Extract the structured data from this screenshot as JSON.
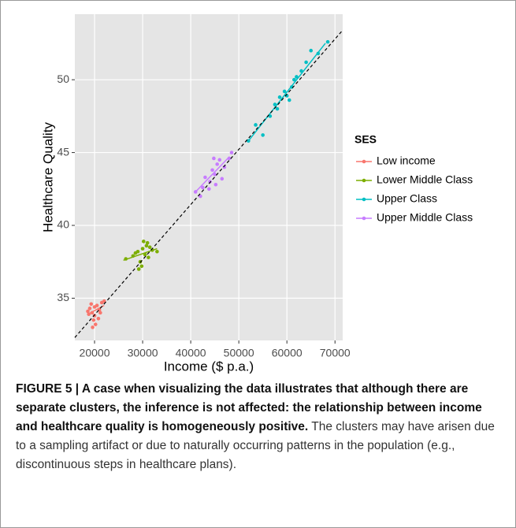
{
  "chart_data": {
    "type": "scatter",
    "xlabel": "Income ($ p.a.)",
    "ylabel": "Healthcare Quality",
    "legend_title": "SES",
    "legend": "right",
    "grid": true,
    "xlim": [
      15900,
      71600
    ],
    "ylim": [
      32.1,
      54.5
    ],
    "xticks": [
      20000,
      30000,
      40000,
      50000,
      60000,
      70000
    ],
    "yticks": [
      35,
      40,
      45,
      50
    ],
    "reference_line": {
      "x": [
        15900,
        71600
      ],
      "y": [
        32.3,
        53.4
      ]
    },
    "series": [
      {
        "name": "Low income",
        "color": "#F8766D",
        "x": [
          19000,
          19500,
          20000,
          20500,
          21000,
          19800,
          20200,
          21500,
          22000,
          18800,
          19300,
          20800,
          19600,
          21200,
          20000,
          18600
        ],
        "values": [
          34.3,
          34.0,
          33.8,
          34.5,
          34.2,
          33.5,
          33.2,
          34.7,
          34.8,
          33.9,
          34.6,
          33.6,
          33.0,
          34.0,
          34.4,
          34.1
        ],
        "fit": {
          "x": [
            18600,
            22000
          ],
          "y": [
            33.9,
            34.5
          ]
        }
      },
      {
        "name": "Lower Middle Class",
        "color": "#7CAE00",
        "x": [
          26500,
          28000,
          29000,
          29500,
          30000,
          30500,
          31000,
          31500,
          29800,
          30200,
          32000,
          28500,
          29200,
          31200,
          33000,
          30800
        ],
        "values": [
          37.7,
          37.9,
          38.2,
          37.5,
          38.4,
          38.0,
          38.8,
          38.5,
          37.2,
          38.9,
          38.3,
          38.1,
          37.0,
          37.8,
          38.2,
          38.6
        ],
        "fit": {
          "x": [
            26000,
            33000
          ],
          "y": [
            37.6,
            38.4
          ]
        }
      },
      {
        "name": "Upper Class",
        "color": "#00BFC4",
        "x": [
          52000,
          53500,
          55000,
          56500,
          57500,
          58000,
          58500,
          59500,
          60000,
          61000,
          61500,
          62000,
          63000,
          64000,
          65000,
          66500,
          68500,
          60500
        ],
        "values": [
          45.8,
          46.9,
          46.2,
          47.5,
          48.3,
          48.0,
          48.8,
          49.2,
          48.9,
          49.5,
          50.0,
          50.2,
          50.6,
          51.2,
          52.0,
          51.8,
          52.6,
          48.6
        ],
        "fit": {
          "x": [
            52000,
            68000
          ],
          "y": [
            45.8,
            52.5
          ]
        }
      },
      {
        "name": "Upper Middle Class",
        "color": "#C77CFF",
        "x": [
          41000,
          42000,
          42500,
          43000,
          44000,
          44500,
          45000,
          45500,
          46000,
          46500,
          47000,
          48000,
          48500,
          45200,
          44800,
          43800
        ],
        "values": [
          42.3,
          42.0,
          42.6,
          43.3,
          43.0,
          43.8,
          43.5,
          44.2,
          44.5,
          43.2,
          44.0,
          44.6,
          45.0,
          42.8,
          44.6,
          42.5
        ],
        "fit": {
          "x": [
            41000,
            48000
          ],
          "y": [
            42.3,
            44.7
          ]
        }
      }
    ]
  },
  "caption": {
    "bold": "FIGURE 5 | A case when visualizing the data illustrates that although there are separate clusters, the inference is not affected: the relationship between income and healthcare quality is homogeneously positive.",
    "text": "The clusters may have arisen due to a sampling artifact or due to naturally occurring patterns in the population (e.g., discontinuous steps in healthcare plans)."
  }
}
